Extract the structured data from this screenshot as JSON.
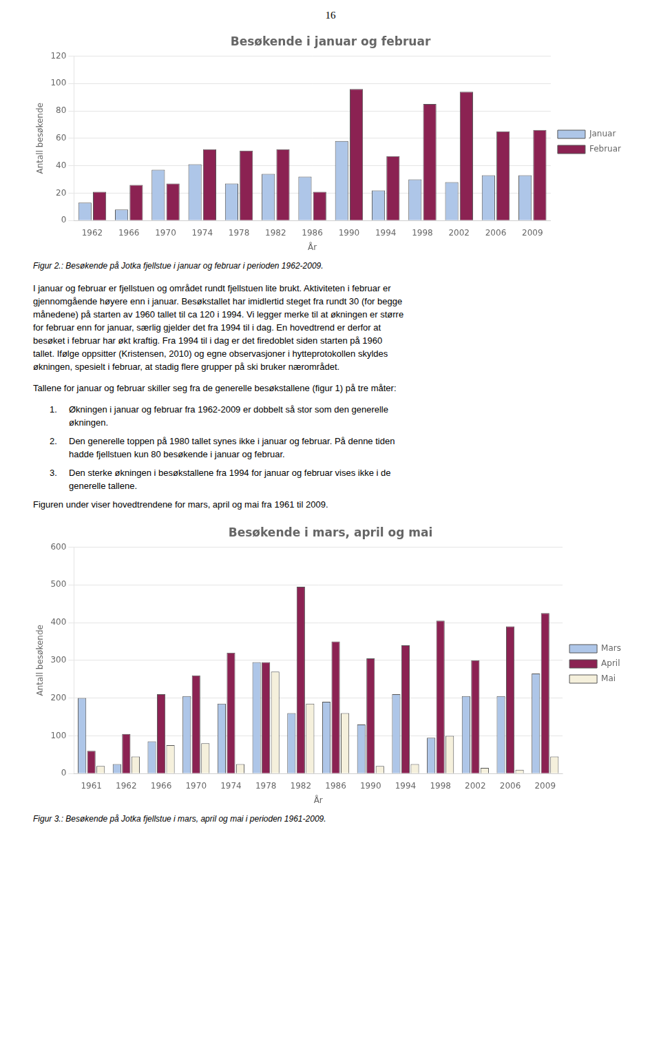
{
  "page_number": "16",
  "chart_data": [
    {
      "type": "bar",
      "title": "Besøkende i januar og februar",
      "xlabel": "År",
      "ylabel": "Antall besøkende",
      "categories": [
        "1962",
        "1966",
        "1970",
        "1974",
        "1978",
        "1982",
        "1986",
        "1990",
        "1994",
        "1998",
        "2002",
        "2006",
        "2009"
      ],
      "series": [
        {
          "name": "Januar",
          "color": "#aec6e8",
          "values": [
            13,
            8,
            37,
            41,
            27,
            34,
            32,
            58,
            22,
            30,
            28,
            33,
            33
          ]
        },
        {
          "name": "Februar",
          "color": "#8b2252",
          "values": [
            21,
            26,
            27,
            52,
            51,
            52,
            21,
            96,
            47,
            85,
            94,
            65,
            66
          ]
        }
      ],
      "ylim": [
        0,
        120
      ],
      "yticks": [
        0,
        20,
        40,
        60,
        80,
        100,
        120
      ],
      "grid": true,
      "legend": "right",
      "caption": "Figur 2.: Besøkende på Jotka fjellstue i januar og februar i perioden 1962-2009."
    },
    {
      "type": "bar",
      "title": "Besøkende i mars, april og mai",
      "xlabel": "År",
      "ylabel": "Antall besøkende",
      "categories": [
        "1961",
        "1962",
        "1966",
        "1970",
        "1974",
        "1978",
        "1982",
        "1986",
        "1990",
        "1994",
        "1998",
        "2002",
        "2006",
        "2009"
      ],
      "series": [
        {
          "name": "Mars",
          "color": "#aec6e8",
          "values": [
            200,
            25,
            85,
            205,
            185,
            295,
            160,
            190,
            130,
            210,
            95,
            205,
            205,
            265
          ]
        },
        {
          "name": "April",
          "color": "#8b2252",
          "values": [
            60,
            105,
            210,
            260,
            320,
            295,
            495,
            350,
            305,
            340,
            405,
            300,
            390,
            425
          ]
        },
        {
          "name": "Mai",
          "color": "#f5f0dc",
          "values": [
            20,
            45,
            75,
            80,
            25,
            270,
            185,
            160,
            20,
            25,
            100,
            15,
            10,
            45
          ]
        }
      ],
      "ylim": [
        0,
        600
      ],
      "yticks": [
        0,
        100,
        200,
        300,
        400,
        500,
        600
      ],
      "grid": true,
      "legend": "right",
      "caption": "Figur 3.: Besøkende på Jotka fjellstue i mars, april og mai i perioden 1961-2009."
    }
  ],
  "body_text": {
    "paragraph": [
      "I januar og februar er fjellstuen og området rundt fjellstuen lite brukt. Aktiviteten i februar er",
      "gjennomgående høyere enn i januar. Besøkstallet har imidlertid steget fra rundt 30 (for begge",
      "månedene) på starten av 1960 tallet til ca 120 i 1994. Vi legger merke til at økningen er større",
      "for februar enn for januar, særlig gjelder det fra 1994 til i dag. En hovedtrend er derfor at",
      "besøket i februar har økt kraftig. Fra 1994 til i dag er det firedoblet siden starten på 1960",
      "tallet. Ifølge oppsitter (Kristensen, 2010) og egne observasjoner i hytteprotokollen skyldes",
      "økningen, spesielt i februar, at stadig flere grupper på ski bruker nærområdet."
    ],
    "intro": "Tallene for januar og februar skiller seg fra de generelle besøkstallene (figur 1) på tre måter:",
    "list": [
      {
        "number": "1.",
        "lines": [
          "Økningen i januar og februar fra 1962-2009 er dobbelt så stor som den generelle",
          "økningen."
        ]
      },
      {
        "number": "2.",
        "lines": [
          "Den generelle toppen på 1980 tallet synes ikke i januar og februar. På denne tiden",
          "hadde fjellstuen kun 80 besøkende i januar og februar."
        ]
      },
      {
        "number": "3.",
        "lines": [
          "Den sterke økningen i besøkstallene fra 1994 for januar og februar vises ikke i de",
          "generelle tallene."
        ]
      }
    ],
    "final_sentence": "Figuren under viser hovedtrendene for mars, april og mai fra 1961 til 2009."
  }
}
